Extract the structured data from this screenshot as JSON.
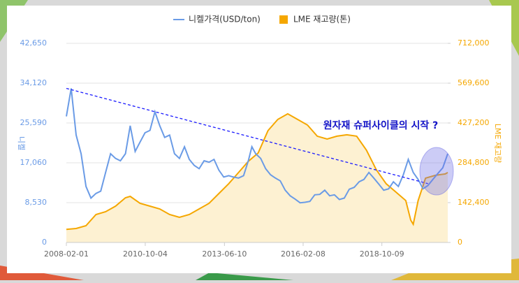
{
  "chart_data": {
    "type": "line",
    "annotation": "원자재 슈퍼사이클의 시작 ?",
    "ylabel": "니켈",
    "y2label": "LME 재고량",
    "grid": true,
    "xlim": [
      "2008-02-01",
      "2021-01-01"
    ],
    "xticks": [
      "2008-02-01",
      "2010-10-04",
      "2013-06-10",
      "2016-02-08",
      "2018-10-09"
    ],
    "ylim": [
      0,
      42650
    ],
    "yticks": [
      0,
      {
        "value": 8530,
        "label": "8,530"
      },
      {
        "value": 17060,
        "label": "17,060"
      },
      {
        "value": 25590,
        "label": "25,590"
      },
      {
        "value": 34120,
        "label": "34,120"
      },
      {
        "value": 42650,
        "label": "42,650"
      }
    ],
    "y2lim": [
      0,
      712000
    ],
    "y2ticks": [
      0,
      {
        "value": 142400,
        "label": "142,400"
      },
      {
        "value": 284800,
        "label": "284,800"
      },
      {
        "value": 427200,
        "label": "427,200"
      },
      {
        "value": 569600,
        "label": "569,600"
      },
      {
        "value": 712000,
        "label": "712,000"
      }
    ],
    "series": [
      {
        "name": "니켈가격(USD/ton)",
        "color": "#6a9be6",
        "x": [
          "2008-02-01",
          "2008-04-01",
          "2008-06-01",
          "2008-08-01",
          "2008-10-01",
          "2008-12-01",
          "2009-02-01",
          "2009-04-01",
          "2009-06-01",
          "2009-08-01",
          "2009-10-01",
          "2009-12-01",
          "2010-02-01",
          "2010-04-01",
          "2010-06-01",
          "2010-08-01",
          "2010-10-01",
          "2010-12-01",
          "2011-02-01",
          "2011-04-01",
          "2011-06-01",
          "2011-08-01",
          "2011-10-01",
          "2011-12-01",
          "2012-02-01",
          "2012-04-01",
          "2012-06-01",
          "2012-08-01",
          "2012-10-01",
          "2012-12-01",
          "2013-02-01",
          "2013-04-01",
          "2013-06-01",
          "2013-08-01",
          "2013-10-01",
          "2013-12-01",
          "2014-02-01",
          "2014-04-01",
          "2014-05-15",
          "2014-07-01",
          "2014-09-01",
          "2014-11-01",
          "2015-01-01",
          "2015-03-01",
          "2015-05-01",
          "2015-07-01",
          "2015-09-01",
          "2015-11-01",
          "2016-01-01",
          "2016-03-01",
          "2016-05-01",
          "2016-07-01",
          "2016-09-01",
          "2016-11-01",
          "2017-01-01",
          "2017-03-01",
          "2017-05-01",
          "2017-07-01",
          "2017-09-01",
          "2017-11-01",
          "2018-01-01",
          "2018-03-01",
          "2018-05-01",
          "2018-07-01",
          "2018-09-01",
          "2018-11-01",
          "2019-01-01",
          "2019-03-01",
          "2019-05-01",
          "2019-07-01",
          "2019-09-01",
          "2019-11-01",
          "2020-01-01",
          "2020-03-01",
          "2020-05-01",
          "2020-07-01",
          "2020-09-01",
          "2020-11-01",
          "2021-01-01"
        ],
        "values": [
          27000,
          33000,
          23000,
          19000,
          12000,
          9500,
          10500,
          11000,
          15000,
          19000,
          18000,
          17500,
          19000,
          25000,
          19500,
          21500,
          23500,
          24000,
          28000,
          25000,
          22500,
          23000,
          19000,
          18000,
          20500,
          17800,
          16500,
          15800,
          17500,
          17200,
          17800,
          15500,
          14000,
          14300,
          14000,
          13800,
          14300,
          17500,
          20500,
          19000,
          18000,
          15800,
          14500,
          13800,
          13200,
          11200,
          10000,
          9300,
          8500,
          8600,
          8800,
          10200,
          10300,
          11200,
          10000,
          10200,
          9200,
          9500,
          11400,
          11800,
          13000,
          13500,
          15000,
          13800,
          12500,
          11200,
          11500,
          13000,
          12000,
          14500,
          17800,
          15000,
          13500,
          11500,
          12200,
          13500,
          14800,
          16000,
          19000
        ]
      },
      {
        "name": "LME 재고량(톤)",
        "color": "#f5a700",
        "axis": "y2",
        "x": [
          "2008-02-01",
          "2008-06-01",
          "2008-10-01",
          "2009-02-01",
          "2009-06-01",
          "2009-10-01",
          "2010-02-01",
          "2010-04-01",
          "2010-08-01",
          "2010-12-01",
          "2011-04-01",
          "2011-08-01",
          "2011-12-01",
          "2012-04-01",
          "2012-08-01",
          "2012-12-01",
          "2013-04-01",
          "2013-08-01",
          "2013-12-01",
          "2014-04-01",
          "2014-08-01",
          "2014-12-01",
          "2015-04-01",
          "2015-08-01",
          "2015-12-01",
          "2016-04-01",
          "2016-08-01",
          "2016-12-01",
          "2017-04-01",
          "2017-08-01",
          "2017-12-01",
          "2018-04-01",
          "2018-08-01",
          "2018-12-01",
          "2019-04-01",
          "2019-08-01",
          "2019-10-01",
          "2019-11-01",
          "2020-01-01",
          "2020-04-01",
          "2020-08-01",
          "2020-12-01",
          "2021-01-01"
        ],
        "values": [
          47000,
          50000,
          60000,
          100000,
          110000,
          130000,
          160000,
          165000,
          140000,
          130000,
          120000,
          100000,
          90000,
          100000,
          120000,
          140000,
          175000,
          210000,
          250000,
          290000,
          320000,
          400000,
          440000,
          460000,
          440000,
          420000,
          380000,
          370000,
          380000,
          385000,
          380000,
          330000,
          260000,
          210000,
          180000,
          150000,
          80000,
          65000,
          150000,
          230000,
          240000,
          245000,
          250000
        ]
      }
    ],
    "trend": {
      "color": "#1a1aff",
      "x": [
        "2008-02-01",
        "2020-05-01"
      ],
      "values": [
        33000,
        12600
      ]
    }
  }
}
